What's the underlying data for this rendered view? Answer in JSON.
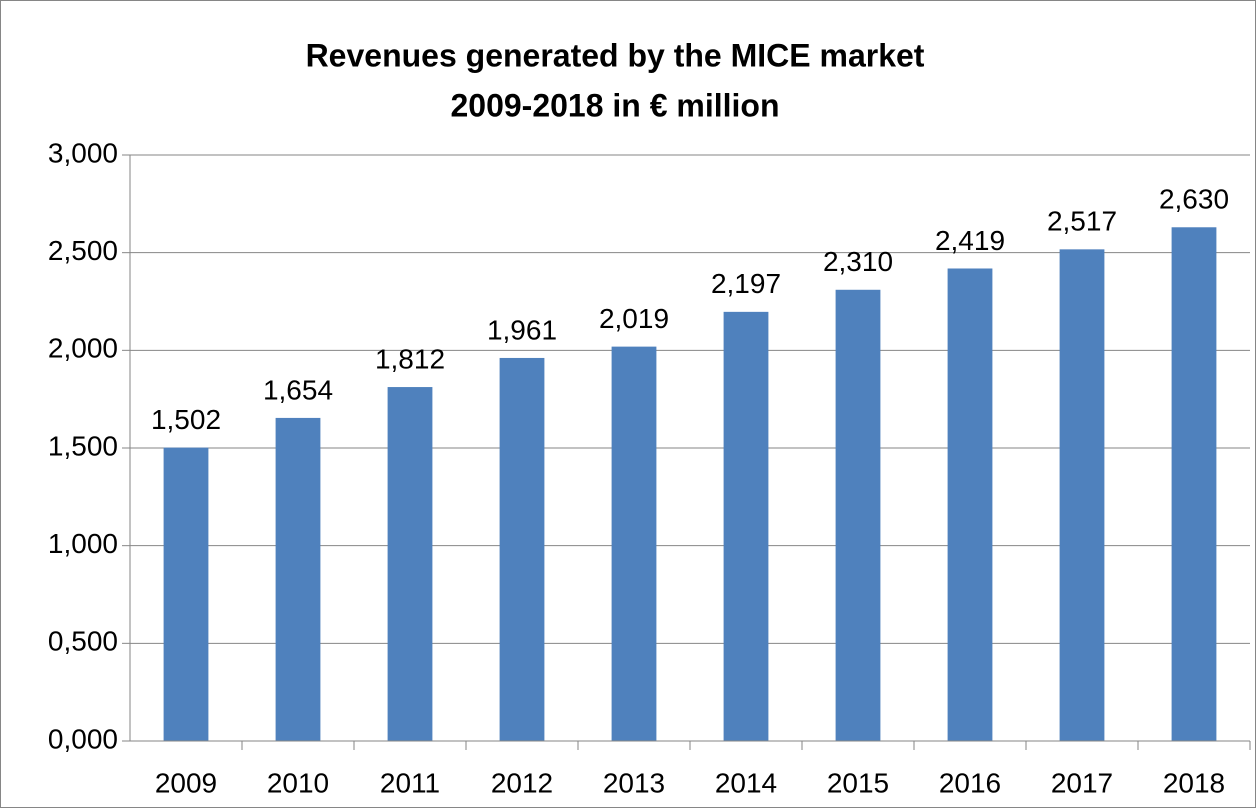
{
  "chart_data": {
    "type": "bar",
    "title": [
      "Revenues generated by the MICE market",
      "2009-2018 in € million"
    ],
    "categories": [
      "2009",
      "2010",
      "2011",
      "2012",
      "2013",
      "2014",
      "2015",
      "2016",
      "2017",
      "2018"
    ],
    "values": [
      1502,
      1654,
      1812,
      1961,
      2019,
      2197,
      2310,
      2419,
      2517,
      2630
    ],
    "value_labels": [
      "1,502",
      "1,654",
      "1,812",
      "1,961",
      "2,019",
      "2,197",
      "2,310",
      "2,419",
      "2,517",
      "2,630"
    ],
    "color": "#4f81bd",
    "ylim": [
      0,
      3000
    ],
    "yticks": [
      {
        "value": 0,
        "label": "0,000"
      },
      {
        "value": 500,
        "label": "0,500"
      },
      {
        "value": 1000,
        "label": "1,000"
      },
      {
        "value": 1500,
        "label": "1,500"
      },
      {
        "value": 2000,
        "label": "2,000"
      },
      {
        "value": 2500,
        "label": "2,500"
      },
      {
        "value": 3000,
        "label": "3,000"
      }
    ],
    "grid": true
  }
}
